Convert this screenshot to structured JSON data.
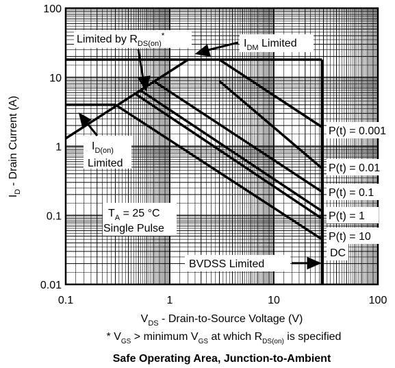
{
  "chart_data": {
    "type": "line",
    "x_scale": "log",
    "y_scale": "log",
    "xlim": [
      0.1,
      100
    ],
    "ylim": [
      0.01,
      100
    ],
    "grid": true,
    "x_ticks": [
      "0.1",
      "1",
      "10",
      "100"
    ],
    "y_ticks": [
      "0.01",
      "0.1",
      "1",
      "10",
      "100"
    ],
    "xlabel": {
      "prefix": "V",
      "sub": "DS",
      "suffix": " - Drain-to-Source Voltage (V)"
    },
    "ylabel": {
      "prefix": "I",
      "sub": "D",
      "suffix": " - Drain Current (A)"
    },
    "footnote": {
      "p1": "* V",
      "s1": "GS",
      "p2": " > minimum V",
      "s2": "GS",
      "p3": " at which R",
      "s3": "DS(on)",
      "p4": " is specified"
    },
    "title": "Safe Operating Area, Junction-to-Ambient",
    "series": [
      {
        "name": "P(t) = 0.001",
        "points": [
          [
            0.1,
            18
          ],
          [
            2.0,
            18
          ],
          [
            3.0,
            18
          ],
          [
            29,
            1.9
          ]
        ]
      },
      {
        "name": "P(t) = 0.01",
        "points": [
          [
            0.1,
            18
          ],
          [
            1.65,
            18
          ],
          [
            3.0,
            8.8
          ],
          [
            29,
            0.48
          ]
        ]
      },
      {
        "name": "P(t) = 0.1",
        "points": [
          [
            0.1,
            18
          ],
          [
            1.3,
            18
          ],
          [
            0.7,
            8.8
          ],
          [
            29,
            0.22
          ]
        ]
      },
      {
        "name": "P(t) = 1",
        "points": [
          [
            0.1,
            18
          ],
          [
            0.85,
            18
          ],
          [
            0.52,
            6.5
          ],
          [
            29,
            0.115
          ]
        ]
      },
      {
        "name": "P(t) = 10",
        "points": [
          [
            0.1,
            18
          ],
          [
            0.55,
            18
          ],
          [
            0.47,
            5.7
          ],
          [
            29,
            0.09
          ]
        ]
      },
      {
        "name": "DC",
        "points": [
          [
            0.1,
            4
          ],
          [
            0.3,
            4
          ],
          [
            29,
            0.045
          ]
        ]
      }
    ],
    "limit_lines": {
      "rdson": [
        [
          0.1,
          1.3
        ],
        [
          1.5,
          18
        ]
      ],
      "idm_y": 18,
      "idon_y": 4,
      "bvdss_x": 29
    },
    "annotations": {
      "rdson": {
        "prefix": "Limited by R",
        "sub": "DS(on)",
        "suffix": "*"
      },
      "idm": {
        "prefix": "I",
        "sub": "DM",
        "suffix": " Limited"
      },
      "idon1": {
        "prefix": "I",
        "sub": "D(on)"
      },
      "idon2": "Limited",
      "ta": {
        "prefix": "T",
        "sub": "A",
        "suffix": " = 25 °C"
      },
      "pulse": "Single Pulse",
      "bvdss": "BVDSS  Limited"
    }
  }
}
